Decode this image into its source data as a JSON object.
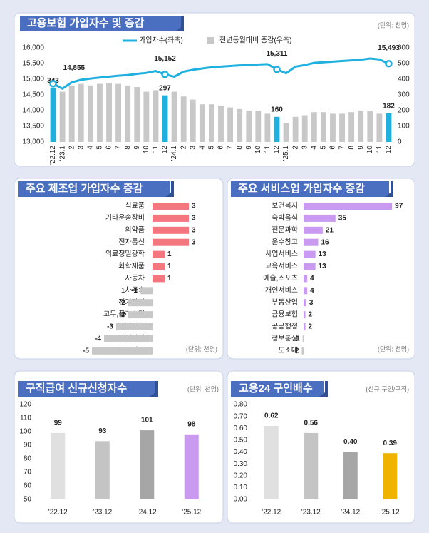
{
  "chart_data": [
    {
      "type": "combo",
      "title": "고용보험 가입자수 및 증감",
      "unit_note": "(단위: 천명)",
      "categories": [
        "'22.12",
        "'23.1",
        "2",
        "3",
        "4",
        "5",
        "6",
        "7",
        "8",
        "9",
        "10",
        "11",
        "12",
        "'24.1",
        "2",
        "3",
        "4",
        "5",
        "6",
        "7",
        "8",
        "9",
        "10",
        "11",
        "12",
        "'25.1",
        "2",
        "3",
        "4",
        "5",
        "6",
        "7",
        "8",
        "9",
        "10",
        "11",
        "12"
      ],
      "series": [
        {
          "name": "가입자수(좌축)",
          "type": "line",
          "color": "#1fb0e0",
          "values": [
            14855,
            14700,
            14900,
            14980,
            15020,
            15050,
            15080,
            15110,
            15130,
            15170,
            15200,
            15260,
            15152,
            15080,
            15240,
            15300,
            15340,
            15380,
            15400,
            15420,
            15440,
            15450,
            15470,
            15480,
            15311,
            15190,
            15400,
            15450,
            15520,
            15540,
            15560,
            15580,
            15600,
            15620,
            15660,
            15630,
            15493
          ],
          "value_labels": [
            "14,855",
            null,
            null,
            null,
            null,
            null,
            null,
            null,
            null,
            null,
            null,
            null,
            "15,152",
            null,
            null,
            null,
            null,
            null,
            null,
            null,
            null,
            null,
            null,
            null,
            "15,311",
            null,
            null,
            null,
            null,
            null,
            null,
            null,
            null,
            null,
            null,
            null,
            "15,493"
          ]
        },
        {
          "name": "전년동월대비 증감(우축)",
          "type": "bar",
          "axis": "y2",
          "color": "#c8c8c8",
          "colors": [
            "#1fb0e0",
            "#c8c8c8",
            "#c8c8c8",
            "#c8c8c8",
            "#c8c8c8",
            "#c8c8c8",
            "#c8c8c8",
            "#c8c8c8",
            "#c8c8c8",
            "#c8c8c8",
            "#c8c8c8",
            "#c8c8c8",
            "#1fb0e0",
            "#c8c8c8",
            "#c8c8c8",
            "#c8c8c8",
            "#c8c8c8",
            "#c8c8c8",
            "#c8c8c8",
            "#c8c8c8",
            "#c8c8c8",
            "#c8c8c8",
            "#c8c8c8",
            "#c8c8c8",
            "#1fb0e0",
            "#c8c8c8",
            "#c8c8c8",
            "#c8c8c8",
            "#c8c8c8",
            "#c8c8c8",
            "#c8c8c8",
            "#c8c8c8",
            "#c8c8c8",
            "#c8c8c8",
            "#c8c8c8",
            "#c8c8c8",
            "#1fb0e0"
          ],
          "values": [
            343,
            320,
            360,
            370,
            360,
            370,
            375,
            370,
            360,
            350,
            320,
            330,
            297,
            320,
            290,
            270,
            240,
            240,
            230,
            220,
            210,
            200,
            200,
            180,
            160,
            120,
            160,
            170,
            190,
            190,
            180,
            180,
            190,
            200,
            200,
            180,
            182
          ],
          "value_labels": [
            "343",
            null,
            null,
            null,
            null,
            null,
            null,
            null,
            null,
            null,
            null,
            null,
            "297",
            null,
            null,
            null,
            null,
            null,
            null,
            null,
            null,
            null,
            null,
            null,
            "160",
            null,
            null,
            null,
            null,
            null,
            null,
            null,
            null,
            null,
            null,
            null,
            "182"
          ]
        }
      ],
      "ylim": [
        13000,
        16000
      ],
      "yticks": [
        {
          "value": 13000,
          "label": "13,000"
        },
        {
          "value": 13500,
          "label": "13,500"
        },
        {
          "value": 14000,
          "label": "14,000"
        },
        {
          "value": 14500,
          "label": "14,500"
        },
        {
          "value": 15000,
          "label": "15,000"
        },
        {
          "value": 15500,
          "label": "15,500"
        },
        {
          "value": 16000,
          "label": "16,000"
        }
      ],
      "y2lim": [
        0,
        600
      ],
      "y2ticks": [
        0,
        100,
        200,
        300,
        400,
        500,
        600
      ]
    },
    {
      "type": "hbar",
      "title": "주요 제조업 가입자수 증감",
      "unit_note": "(단위: 천명)",
      "categories": [
        "식료품",
        "기타운송장비",
        "의약품",
        "전자통신",
        "의료정밀광학",
        "화학제품",
        "자동차",
        "1차금속",
        "전기장비",
        "고무,플라스틱",
        "섬유제품",
        "기계장비",
        "금속가공"
      ],
      "values": [
        3,
        3,
        3,
        3,
        1,
        1,
        1,
        -1,
        -2,
        -2,
        -3,
        -4,
        -5
      ],
      "positive_color": "#f4777f",
      "negative_color": "#c8c8c8",
      "negative_label_color": "#e00000"
    },
    {
      "type": "hbar",
      "title": "주요 서비스업 가입자수 증감",
      "unit_note": "(단위: 천명)",
      "categories": [
        "보건복지",
        "숙박음식",
        "전문과학",
        "운수창고",
        "사업서비스",
        "교육서비스",
        "예술,스포츠",
        "개인서비스",
        "부동산업",
        "금융보험",
        "공공행정",
        "정보통신",
        "도소매"
      ],
      "values": [
        97,
        35,
        21,
        16,
        13,
        13,
        4,
        4,
        3,
        2,
        2,
        -1,
        -2
      ],
      "positive_color": "#c99af0",
      "negative_color": "#c8c8c8",
      "negative_label_color": "#e00000"
    },
    {
      "type": "bar",
      "title": "구직급여 신규신청자수",
      "unit_note": "(단위: 천명)",
      "categories": [
        "'22.12",
        "'23.12",
        "'24.12",
        "'25.12"
      ],
      "values": [
        99,
        93,
        101,
        98
      ],
      "colors": [
        "#e0e0e0",
        "#c4c4c4",
        "#a6a6a6",
        "#c99af0"
      ],
      "ylim": [
        50,
        120
      ],
      "yticks": [
        50,
        60,
        70,
        80,
        90,
        100,
        110,
        120
      ]
    },
    {
      "type": "bar",
      "title": "고용24 구인배수",
      "unit_note": "(신규 구인/구직)",
      "categories": [
        "'22.12",
        "'23.12",
        "'24.12",
        "'25.12"
      ],
      "values": [
        0.62,
        0.56,
        0.4,
        0.39
      ],
      "value_labels": [
        "0.62",
        "0.56",
        "0.40",
        "0.39"
      ],
      "colors": [
        "#e0e0e0",
        "#c4c4c4",
        "#a6a6a6",
        "#f0b400"
      ],
      "ylim": [
        0,
        0.8
      ],
      "yticks": [
        {
          "value": 0,
          "label": "0.00"
        },
        {
          "value": 0.1,
          "label": "0.10"
        },
        {
          "value": 0.2,
          "label": "0.20"
        },
        {
          "value": 0.3,
          "label": "0.30"
        },
        {
          "value": 0.4,
          "label": "0.40"
        },
        {
          "value": 0.5,
          "label": "0.50"
        },
        {
          "value": 0.6,
          "label": "0.60"
        },
        {
          "value": 0.7,
          "label": "0.70"
        },
        {
          "value": 0.8,
          "label": "0.80"
        }
      ]
    }
  ]
}
